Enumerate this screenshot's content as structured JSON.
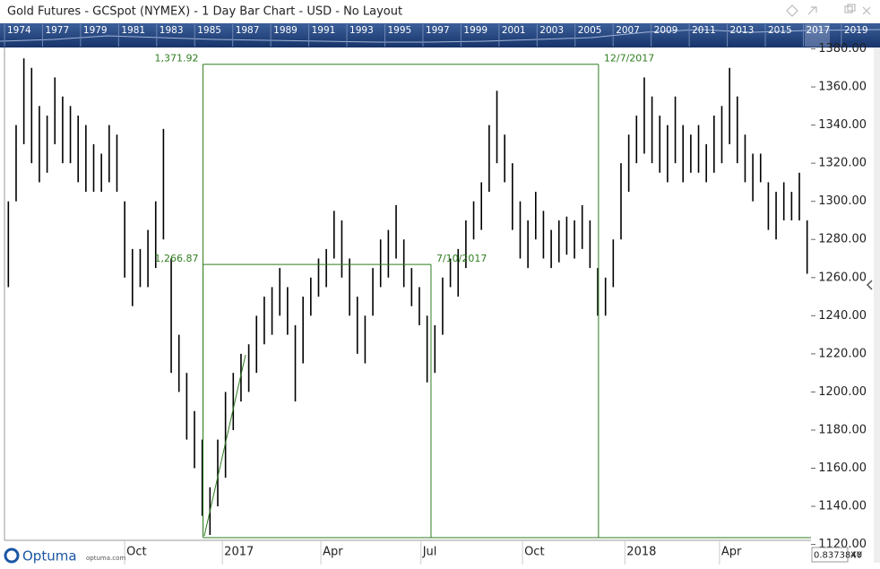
{
  "window": {
    "title": "Gold Futures - GCSpot (NYMEX) - 1 Day Bar Chart - USD - No Layout",
    "logo": "Optuma",
    "logo_url": "optuma.com",
    "zoom_value": "0.8373840",
    "mode": "XY"
  },
  "navigator": {
    "years": [
      "1974",
      "1977",
      "1979",
      "1981",
      "1983",
      "1985",
      "1987",
      "1989",
      "1991",
      "1993",
      "1995",
      "1997",
      "1999",
      "2001",
      "2003",
      "2005",
      "2007",
      "2009",
      "2011",
      "2013",
      "2015",
      "2017",
      "2019"
    ]
  },
  "chart_data": {
    "type": "hilo",
    "x": [
      0,
      1,
      2,
      3,
      4,
      5,
      6,
      7,
      8,
      9,
      10,
      11,
      12,
      13,
      14,
      15,
      16,
      17,
      18,
      19,
      20,
      21,
      22,
      23,
      24,
      25,
      26,
      27,
      28,
      29,
      30,
      31,
      32,
      33,
      34,
      35,
      36,
      37,
      38,
      39,
      40,
      41,
      42,
      43,
      44,
      45,
      46,
      47,
      48,
      49,
      50,
      51,
      52,
      53,
      54,
      55,
      56,
      57,
      58,
      59,
      60,
      61,
      62,
      63,
      64,
      65,
      66,
      67,
      68,
      69,
      70,
      71,
      72,
      73,
      74,
      75,
      76,
      77,
      78,
      79,
      80,
      81,
      82,
      83,
      84,
      85,
      86,
      87,
      88,
      89,
      90,
      91,
      92,
      93,
      94,
      95,
      96,
      97,
      98,
      99,
      100,
      101,
      102,
      103
    ],
    "series": [
      {
        "color": "#000000",
        "high": [
          1300,
          1340,
          1375,
          1370,
          1350,
          1345,
          1365,
          1355,
          1350,
          1345,
          1340,
          1330,
          1325,
          1340,
          1335,
          1300,
          1275,
          1275,
          1285,
          1300,
          1338,
          1270,
          1230,
          1210,
          1190,
          1175,
          1150,
          1175,
          1200,
          1210,
          1220,
          1225,
          1240,
          1250,
          1255,
          1265,
          1255,
          1235,
          1250,
          1260,
          1270,
          1275,
          1295,
          1290,
          1270,
          1250,
          1240,
          1265,
          1280,
          1285,
          1298,
          1280,
          1265,
          1255,
          1240,
          1235,
          1260,
          1270,
          1275,
          1290,
          1300,
          1310,
          1340,
          1358,
          1335,
          1320,
          1300,
          1290,
          1305,
          1295,
          1285,
          1290,
          1292,
          1290,
          1298,
          1290,
          1265,
          1260,
          1280,
          1320,
          1335,
          1345,
          1365,
          1355,
          1345,
          1340,
          1355,
          1340,
          1335,
          1340,
          1330,
          1345,
          1350,
          1370,
          1355,
          1335,
          1325,
          1325,
          1310,
          1305,
          1310,
          1305,
          1315,
          1290
        ],
        "low": [
          1255,
          1300,
          1330,
          1320,
          1310,
          1315,
          1330,
          1320,
          1320,
          1310,
          1305,
          1305,
          1305,
          1310,
          1305,
          1260,
          1245,
          1255,
          1255,
          1265,
          1280,
          1210,
          1200,
          1175,
          1160,
          1135,
          1125,
          1140,
          1155,
          1180,
          1195,
          1200,
          1210,
          1225,
          1230,
          1240,
          1230,
          1195,
          1215,
          1240,
          1250,
          1255,
          1270,
          1260,
          1240,
          1220,
          1215,
          1240,
          1255,
          1260,
          1270,
          1255,
          1245,
          1235,
          1205,
          1210,
          1230,
          1255,
          1250,
          1265,
          1280,
          1285,
          1305,
          1320,
          1310,
          1285,
          1270,
          1265,
          1280,
          1270,
          1265,
          1268,
          1272,
          1270,
          1275,
          1265,
          1240,
          1240,
          1255,
          1280,
          1305,
          1320,
          1325,
          1320,
          1315,
          1310,
          1320,
          1310,
          1315,
          1315,
          1310,
          1315,
          1320,
          1330,
          1320,
          1310,
          1300,
          1310,
          1285,
          1280,
          1290,
          1290,
          1290,
          1262
        ]
      }
    ],
    "xlim": [
      -0.5,
      103.5
    ],
    "xticks": [
      {
        "value": 15,
        "label": "Oct"
      },
      {
        "value": 27.6,
        "label": "2017"
      },
      {
        "value": 40.3,
        "label": "Apr"
      },
      {
        "value": 53.2,
        "label": "Jul"
      },
      {
        "value": 66.3,
        "label": "Oct"
      },
      {
        "value": 79.5,
        "label": "2018"
      },
      {
        "value": 91.7,
        "label": "Apr"
      }
    ],
    "ylim": [
      1120,
      1380
    ],
    "yticks": [
      {
        "value": 1120,
        "label": "1120.00"
      },
      {
        "value": 1140,
        "label": "1140.00"
      },
      {
        "value": 1160,
        "label": "1160.00"
      },
      {
        "value": 1180,
        "label": "1180.00"
      },
      {
        "value": 1200,
        "label": "1200.00"
      },
      {
        "value": 1220,
        "label": "1220.00"
      },
      {
        "value": 1240,
        "label": "1240.00"
      },
      {
        "value": 1260,
        "label": "1260.00"
      },
      {
        "value": 1280,
        "label": "1280.00"
      },
      {
        "value": 1300,
        "label": "1300.00"
      },
      {
        "value": 1320,
        "label": "1320.00"
      },
      {
        "value": 1340,
        "label": "1340.00"
      },
      {
        "value": 1360,
        "label": "1360.00"
      },
      {
        "value": 1380,
        "label": "1380.00"
      }
    ],
    "annotations": [
      {
        "start_x": 25.1,
        "end_x": 76.1,
        "level": {
          "value": 1371.92,
          "label": "1,371.92"
        },
        "date": "12/7/2017",
        "color": "#2e7d1f"
      },
      {
        "start_x": 25.1,
        "end_x": 54.5,
        "level": {
          "value": 1266.87,
          "label": "1,266.87"
        },
        "date": "7/10/2017",
        "color": "#2e7d1f"
      }
    ]
  }
}
